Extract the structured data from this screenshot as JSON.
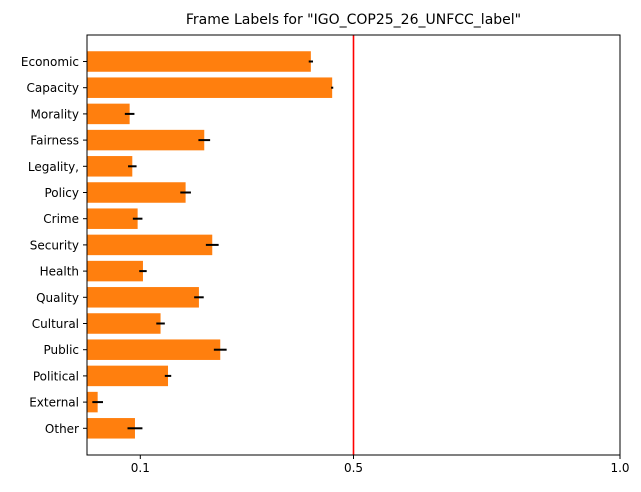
{
  "chart_data": {
    "type": "bar",
    "orientation": "horizontal",
    "title": "Frame Labels for \"IGO_COP25_26_UNFCC_label\"",
    "xlabel": "",
    "ylabel": "",
    "xlim": [
      0.0,
      1.0
    ],
    "xticks": [
      0.1,
      0.5,
      1.0
    ],
    "xtick_labels": [
      "0.1",
      "0.5",
      "1.0"
    ],
    "grid": false,
    "legend": "none",
    "bar_color": "#ff7f0e",
    "error_color": "#000000",
    "reference_line": {
      "x": 0.5,
      "color": "#ff0000"
    },
    "categories": [
      "Economic",
      "Capacity",
      "Morality",
      "Fairness",
      "Legality,",
      "Policy",
      "Crime",
      "Security",
      "Health",
      "Quality",
      "Cultural",
      "Public",
      "Political",
      "External",
      "Other"
    ],
    "values": [
      0.42,
      0.46,
      0.08,
      0.22,
      0.085,
      0.185,
      0.095,
      0.235,
      0.105,
      0.21,
      0.138,
      0.25,
      0.152,
      0.02,
      0.09
    ],
    "errors": [
      0.004,
      0.002,
      0.009,
      0.011,
      0.008,
      0.01,
      0.009,
      0.012,
      0.007,
      0.009,
      0.008,
      0.012,
      0.006,
      0.01,
      0.014
    ]
  }
}
